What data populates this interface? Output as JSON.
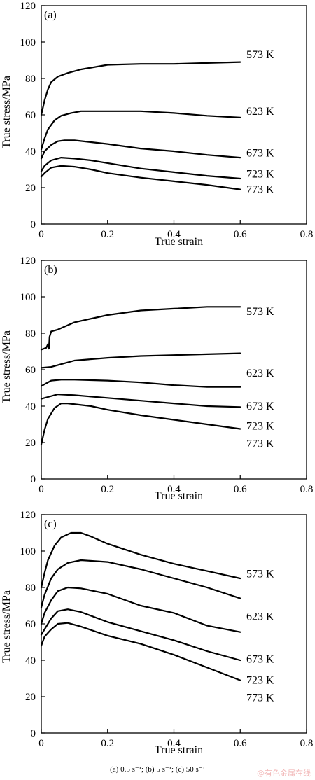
{
  "chart_data": [
    {
      "type": "line",
      "panel_label": "(a)",
      "xlabel": "True strain",
      "ylabel": "True stress/MPa",
      "xlim": [
        0,
        0.8
      ],
      "ylim": [
        0,
        120
      ],
      "xticks": [
        "0",
        "0.2",
        "0.4",
        "0.6",
        "0.8"
      ],
      "yticks": [
        "0",
        "20",
        "40",
        "60",
        "80",
        "100",
        "120"
      ],
      "series": [
        {
          "name": "573 K",
          "label_value": 93,
          "points": [
            [
              0,
              60
            ],
            [
              0.01,
              68
            ],
            [
              0.02,
              74
            ],
            [
              0.03,
              78
            ],
            [
              0.05,
              81
            ],
            [
              0.08,
              83
            ],
            [
              0.12,
              85
            ],
            [
              0.2,
              87.5
            ],
            [
              0.3,
              88
            ],
            [
              0.4,
              88
            ],
            [
              0.5,
              88.5
            ],
            [
              0.6,
              89
            ]
          ]
        },
        {
          "name": "623 K",
          "label_value": 62,
          "points": [
            [
              0,
              41
            ],
            [
              0.01,
              47
            ],
            [
              0.02,
              52
            ],
            [
              0.04,
              57
            ],
            [
              0.06,
              59.5
            ],
            [
              0.09,
              61
            ],
            [
              0.12,
              62
            ],
            [
              0.2,
              62
            ],
            [
              0.3,
              62
            ],
            [
              0.4,
              61
            ],
            [
              0.5,
              59.5
            ],
            [
              0.6,
              58.5
            ]
          ]
        },
        {
          "name": "673 K",
          "label_value": 39,
          "points": [
            [
              0,
              36
            ],
            [
              0.01,
              40
            ],
            [
              0.03,
              43.5
            ],
            [
              0.05,
              45.5
            ],
            [
              0.07,
              46
            ],
            [
              0.1,
              46
            ],
            [
              0.15,
              45
            ],
            [
              0.2,
              44
            ],
            [
              0.3,
              41.5
            ],
            [
              0.4,
              40
            ],
            [
              0.5,
              38
            ],
            [
              0.6,
              36.5
            ]
          ]
        },
        {
          "name": "723 K",
          "label_value": 27.5,
          "points": [
            [
              0,
              29
            ],
            [
              0.01,
              32
            ],
            [
              0.03,
              35
            ],
            [
              0.06,
              36.5
            ],
            [
              0.1,
              36
            ],
            [
              0.15,
              35
            ],
            [
              0.2,
              33.5
            ],
            [
              0.3,
              30.5
            ],
            [
              0.4,
              28.5
            ],
            [
              0.5,
              26.5
            ],
            [
              0.6,
              25
            ]
          ]
        },
        {
          "name": "773 K",
          "label_value": 19,
          "points": [
            [
              0,
              26
            ],
            [
              0.01,
              28
            ],
            [
              0.03,
              31
            ],
            [
              0.06,
              32
            ],
            [
              0.1,
              31.5
            ],
            [
              0.15,
              30
            ],
            [
              0.2,
              28
            ],
            [
              0.3,
              25.5
            ],
            [
              0.4,
              23.5
            ],
            [
              0.5,
              21.5
            ],
            [
              0.6,
              19
            ]
          ]
        }
      ]
    },
    {
      "type": "line",
      "panel_label": "(b)",
      "xlabel": "True strain",
      "ylabel": "True stress/MPa",
      "xlim": [
        0,
        0.8
      ],
      "ylim": [
        0,
        120
      ],
      "xticks": [
        "0",
        "0.2",
        "0.4",
        "0.6",
        "0.8"
      ],
      "yticks": [
        "0",
        "20",
        "40",
        "60",
        "80",
        "100",
        "120"
      ],
      "series": [
        {
          "name": "573 K",
          "label_value": 92,
          "points": [
            [
              0,
              71
            ],
            [
              0.015,
              72
            ],
            [
              0.02,
              74
            ],
            [
              0.023,
              71.5
            ],
            [
              0.025,
              78
            ],
            [
              0.03,
              81
            ],
            [
              0.05,
              82
            ],
            [
              0.1,
              86
            ],
            [
              0.2,
              90
            ],
            [
              0.3,
              92.5
            ],
            [
              0.4,
              93.5
            ],
            [
              0.5,
              94.5
            ],
            [
              0.6,
              94.5
            ]
          ]
        },
        {
          "name": "623 K",
          "label_value": 58,
          "points": [
            [
              0,
              61
            ],
            [
              0.03,
              61.5
            ],
            [
              0.06,
              63
            ],
            [
              0.1,
              65
            ],
            [
              0.2,
              66.5
            ],
            [
              0.3,
              67.5
            ],
            [
              0.4,
              68
            ],
            [
              0.5,
              68.5
            ],
            [
              0.6,
              69
            ]
          ]
        },
        {
          "name": "673 K",
          "label_value": 40,
          "points": [
            [
              0,
              51
            ],
            [
              0.01,
              52
            ],
            [
              0.03,
              54
            ],
            [
              0.06,
              54.5
            ],
            [
              0.1,
              54.5
            ],
            [
              0.2,
              54
            ],
            [
              0.3,
              53
            ],
            [
              0.4,
              51.5
            ],
            [
              0.5,
              50.5
            ],
            [
              0.6,
              50.5
            ]
          ]
        },
        {
          "name": "723 K",
          "label_value": 29,
          "points": [
            [
              0,
              44
            ],
            [
              0.02,
              45
            ],
            [
              0.05,
              46.5
            ],
            [
              0.1,
              46
            ],
            [
              0.2,
              44.5
            ],
            [
              0.3,
              43
            ],
            [
              0.4,
              41.5
            ],
            [
              0.5,
              40
            ],
            [
              0.6,
              39.5
            ]
          ]
        },
        {
          "name": "773 K",
          "label_value": 19.5,
          "points": [
            [
              0,
              19
            ],
            [
              0.01,
              27
            ],
            [
              0.02,
              33
            ],
            [
              0.04,
              39
            ],
            [
              0.06,
              41.5
            ],
            [
              0.08,
              41.5
            ],
            [
              0.15,
              40
            ],
            [
              0.2,
              38
            ],
            [
              0.3,
              35
            ],
            [
              0.4,
              32.5
            ],
            [
              0.5,
              30
            ],
            [
              0.6,
              27.5
            ]
          ]
        }
      ]
    },
    {
      "type": "line",
      "panel_label": "(c)",
      "xlabel": "True strain",
      "ylabel": "True stress/MPa",
      "xlim": [
        0,
        0.8
      ],
      "ylim": [
        0,
        120
      ],
      "xticks": [
        "0",
        "0.2",
        "0.4",
        "0.6",
        "0.8"
      ],
      "yticks": [
        "0",
        "20",
        "40",
        "60",
        "80",
        "100",
        "120"
      ],
      "series": [
        {
          "name": "573 K",
          "label_value": 87.5,
          "points": [
            [
              0,
              80
            ],
            [
              0.01,
              88
            ],
            [
              0.02,
              95
            ],
            [
              0.04,
              103
            ],
            [
              0.06,
              107.5
            ],
            [
              0.09,
              110
            ],
            [
              0.12,
              110
            ],
            [
              0.15,
              108
            ],
            [
              0.2,
              104
            ],
            [
              0.3,
              98
            ],
            [
              0.4,
              93
            ],
            [
              0.5,
              89
            ],
            [
              0.6,
              85
            ]
          ]
        },
        {
          "name": "623 K",
          "label_value": 64,
          "points": [
            [
              0,
              69
            ],
            [
              0.01,
              76
            ],
            [
              0.03,
              85
            ],
            [
              0.05,
              90
            ],
            [
              0.08,
              93.5
            ],
            [
              0.12,
              95
            ],
            [
              0.2,
              94
            ],
            [
              0.3,
              90
            ],
            [
              0.4,
              85
            ],
            [
              0.5,
              80
            ],
            [
              0.6,
              74
            ]
          ]
        },
        {
          "name": "673 K",
          "label_value": 40.5,
          "points": [
            [
              0,
              60
            ],
            [
              0.01,
              66
            ],
            [
              0.03,
              73
            ],
            [
              0.05,
              78
            ],
            [
              0.08,
              80
            ],
            [
              0.12,
              79.5
            ],
            [
              0.2,
              76.5
            ],
            [
              0.3,
              70
            ],
            [
              0.4,
              66
            ],
            [
              0.5,
              59
            ],
            [
              0.6,
              55.5
            ]
          ]
        },
        {
          "name": "723 K",
          "label_value": 29,
          "points": [
            [
              0,
              54
            ],
            [
              0.01,
              57
            ],
            [
              0.03,
              63
            ],
            [
              0.05,
              67
            ],
            [
              0.08,
              68
            ],
            [
              0.12,
              66.5
            ],
            [
              0.2,
              61
            ],
            [
              0.3,
              56
            ],
            [
              0.4,
              51
            ],
            [
              0.5,
              45
            ],
            [
              0.6,
              40
            ]
          ]
        },
        {
          "name": "773 K",
          "label_value": 19.5,
          "points": [
            [
              0,
              48
            ],
            [
              0.01,
              53
            ],
            [
              0.03,
              57
            ],
            [
              0.05,
              60
            ],
            [
              0.08,
              60.5
            ],
            [
              0.12,
              58.5
            ],
            [
              0.2,
              53.5
            ],
            [
              0.3,
              49
            ],
            [
              0.4,
              43
            ],
            [
              0.5,
              36
            ],
            [
              0.6,
              29
            ]
          ]
        }
      ]
    }
  ],
  "caption": "(a)  0.5  s⁻¹; (b) 5 s⁻¹; (c) 50 s⁻¹",
  "watermark": "@有色金属在线"
}
